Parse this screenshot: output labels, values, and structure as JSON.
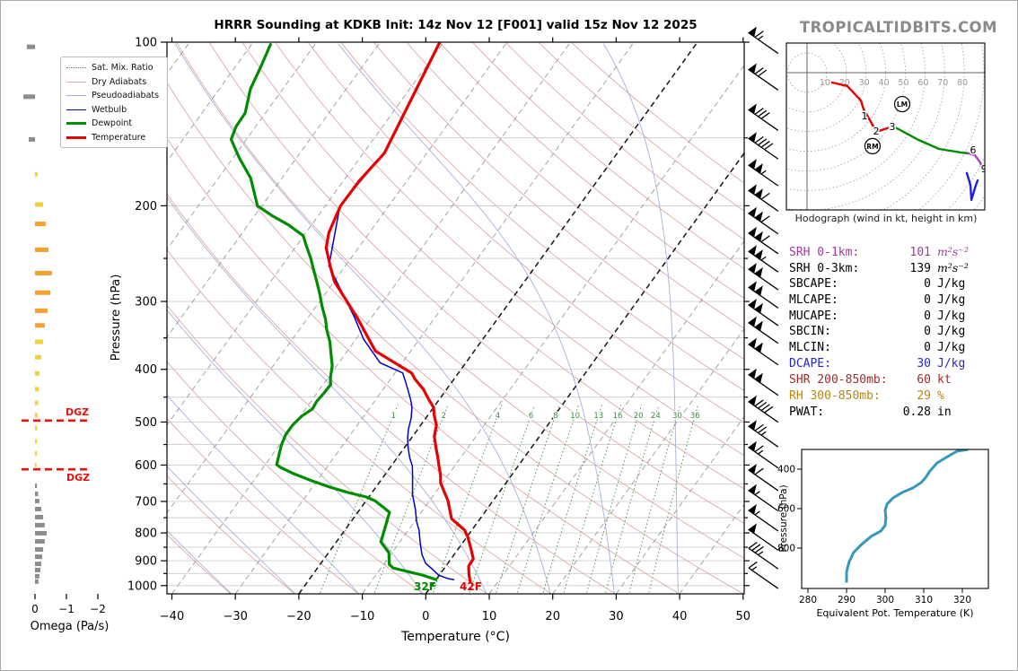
{
  "title": "HRRR Sounding at KDKB Init: 14z Nov 12 [F001] valid 15z Nov 12 2025",
  "watermark": "TROPICALTIDBITS.COM",
  "skewt_labels": {
    "xlabel": "Temperature (°C)",
    "ylabel": "Pressure (hPa)",
    "surface_temp": "42F",
    "surface_dewpoint": "32F"
  },
  "legend_items": [
    "Sat. Mix. Ratio",
    "Dry Adiabats",
    "Pseudoadiabats",
    "Wetbulb",
    "Dewpoint",
    "Temperature"
  ],
  "omega_panel": {
    "label": "Omega (Pa/s)",
    "dgz": "DGZ",
    "ticks": [
      0,
      -1,
      -2
    ]
  },
  "hodograph_panel": {
    "caption": "Hodograph (wind in kt, height in km)",
    "ring_labels": [
      10,
      20,
      30,
      40,
      50,
      60,
      70,
      80
    ]
  },
  "thetae_panel": {
    "xlabel": "Equivalent Pot. Temperature (K)",
    "ylabel": "Pressure (hPa)",
    "x_ticks": [
      280,
      290,
      300,
      310,
      320
    ],
    "y_ticks": [
      400,
      600,
      800
    ]
  },
  "stats": {
    "rows": [
      {
        "label": "SRH 0-1km:",
        "value": "101",
        "unit": "m²s⁻²",
        "color": "#a03aa0",
        "math": true
      },
      {
        "label": "SRH 0-3km:",
        "value": "139",
        "unit": "m²s⁻²",
        "color": "#000000",
        "math": true
      },
      {
        "label": "SBCAPE:",
        "value": "0",
        "unit": "J/kg",
        "color": "#000000",
        "math": false
      },
      {
        "label": "MLCAPE:",
        "value": "0",
        "unit": "J/kg",
        "color": "#000000",
        "math": false
      },
      {
        "label": "MUCAPE:",
        "value": "0",
        "unit": "J/kg",
        "color": "#000000",
        "math": false
      },
      {
        "label": "SBCIN:",
        "value": "0",
        "unit": "J/kg",
        "color": "#000000",
        "math": false
      },
      {
        "label": "MLCIN:",
        "value": "0",
        "unit": "J/kg",
        "color": "#000000",
        "math": false
      },
      {
        "label": "DCAPE:",
        "value": "30",
        "unit": "J/kg",
        "color": "#2525cc",
        "math": false
      },
      {
        "label": "SHR 200-850mb:",
        "value": "60",
        "unit": "kt",
        "color": "#a52a2a",
        "math": false
      },
      {
        "label": "RH 300-850mb:",
        "value": "29",
        "unit": "%",
        "color": "#b8860b",
        "math": false
      },
      {
        "label": "PWAT:",
        "value": "0.28",
        "unit": "in",
        "color": "#000000",
        "math": false
      }
    ]
  },
  "chart_data": {
    "type": "skewt-sounding",
    "skewt": {
      "x_axis": {
        "label": "Temperature (°C)",
        "range": [
          -40,
          50
        ],
        "ticks": [
          -40,
          -30,
          -20,
          -10,
          0,
          10,
          20,
          30,
          40,
          50
        ]
      },
      "p_axis": {
        "label": "Pressure (hPa)",
        "range": [
          100,
          1036
        ],
        "ticks": [
          100,
          200,
          300,
          400,
          500,
          600,
          700,
          800,
          900,
          1000
        ]
      },
      "isotherm_step": 10,
      "bold_isotherms": [
        0,
        -20
      ],
      "mixing_ratio_lines": [
        1,
        2,
        4,
        6,
        8,
        10,
        13,
        16,
        20,
        24,
        30,
        36
      ],
      "series": [
        {
          "name": "Temperature",
          "color": "#e60000",
          "width": 3.2,
          "points": [
            [
              100,
              -60.6
            ],
            [
              160,
              -56.7
            ],
            [
              180,
              -57.5
            ],
            [
              200,
              -57.6
            ],
            [
              224,
              -56.4
            ],
            [
              239,
              -55.1
            ],
            [
              258,
              -52.4
            ],
            [
              276,
              -49.9
            ],
            [
              321,
              -42.3
            ],
            [
              370,
              -35.6
            ],
            [
              406,
              -27.4
            ],
            [
              418,
              -26
            ],
            [
              435,
              -23.7
            ],
            [
              456,
              -21.5
            ],
            [
              470,
              -20
            ],
            [
              486,
              -19
            ],
            [
              507,
              -17.5
            ],
            [
              531,
              -16.6
            ],
            [
              558,
              -15
            ],
            [
              580,
              -13.7
            ],
            [
              602,
              -12.5
            ],
            [
              626,
              -11.2
            ],
            [
              647,
              -10.3
            ],
            [
              698,
              -7.1
            ],
            [
              753,
              -4.5
            ],
            [
              791,
              -1.1
            ],
            [
              815,
              0.2
            ],
            [
              863,
              2.3
            ],
            [
              893,
              3.5
            ],
            [
              921,
              3.6
            ],
            [
              957,
              4.7
            ],
            [
              983,
              5.6
            ]
          ]
        },
        {
          "name": "Dewpoint",
          "color": "#008c00",
          "width": 3.2,
          "points": [
            [
              101,
              -87
            ],
            [
              111,
              -86
            ],
            [
              122,
              -85.1
            ],
            [
              135,
              -83.2
            ],
            [
              143,
              -83.1
            ],
            [
              151,
              -82.4
            ],
            [
              163,
              -79.1
            ],
            [
              178,
              -74.9
            ],
            [
              200,
              -70.7
            ],
            [
              209,
              -67.1
            ],
            [
              217,
              -63.6
            ],
            [
              227,
              -60.1
            ],
            [
              236,
              -58.6
            ],
            [
              250,
              -56.3
            ],
            [
              260,
              -54.9
            ],
            [
              276,
              -52.7
            ],
            [
              291,
              -50.8
            ],
            [
              306,
              -49.1
            ],
            [
              324,
              -47
            ],
            [
              338,
              -45.7
            ],
            [
              356,
              -43.8
            ],
            [
              374,
              -42.3
            ],
            [
              394,
              -40.7
            ],
            [
              415,
              -39.6
            ],
            [
              427,
              -38.8
            ],
            [
              442,
              -38.9
            ],
            [
              458,
              -39.1
            ],
            [
              473,
              -38.9
            ],
            [
              488,
              -39.8
            ],
            [
              507,
              -40.2
            ],
            [
              527,
              -40.2
            ],
            [
              551,
              -39.7
            ],
            [
              573,
              -39
            ],
            [
              599,
              -38.2
            ],
            [
              606,
              -37.3
            ],
            [
              623,
              -34.4
            ],
            [
              642,
              -30.7
            ],
            [
              659,
              -27.2
            ],
            [
              674,
              -23.8
            ],
            [
              687,
              -20.4
            ],
            [
              698,
              -18.6
            ],
            [
              719,
              -16.4
            ],
            [
              733,
              -15
            ],
            [
              815,
              -13.3
            ],
            [
              831,
              -13
            ],
            [
              870,
              -10.5
            ],
            [
              914,
              -9.1
            ],
            [
              928,
              -8.1
            ],
            [
              957,
              -2.6
            ],
            [
              975,
              0
            ]
          ]
        },
        {
          "name": "Wetbulb",
          "color": "#0000c8",
          "width": 1.5,
          "points": [
            [
              100,
              -60.7
            ],
            [
              160,
              -56.8
            ],
            [
              200,
              -57.7
            ],
            [
              258,
              -52.6
            ],
            [
              321,
              -42.7
            ],
            [
              352,
              -38.8
            ],
            [
              389,
              -33.5
            ],
            [
              406,
              -28.8
            ],
            [
              421,
              -27.4
            ],
            [
              439,
              -25.8
            ],
            [
              456,
              -24.4
            ],
            [
              470,
              -23.4
            ],
            [
              492,
              -22.3
            ],
            [
              515,
              -21.5
            ],
            [
              535,
              -20.6
            ],
            [
              558,
              -19.4
            ],
            [
              584,
              -17.9
            ],
            [
              602,
              -16.7
            ],
            [
              626,
              -15.6
            ],
            [
              680,
              -13.4
            ],
            [
              725,
              -11.2
            ],
            [
              762,
              -9.7
            ],
            [
              791,
              -8.3
            ],
            [
              831,
              -6.8
            ],
            [
              876,
              -5.1
            ],
            [
              910,
              -3.5
            ],
            [
              931,
              -1.9
            ],
            [
              957,
              -0.1
            ],
            [
              971,
              1.8
            ],
            [
              975,
              2.8
            ]
          ]
        }
      ]
    },
    "wind_barbs": [
      {
        "p": 101,
        "spd": 65
      },
      {
        "p": 118,
        "spd": 70
      },
      {
        "p": 140,
        "spd": 80
      },
      {
        "p": 158,
        "spd": 90
      },
      {
        "p": 177,
        "spd": 105
      },
      {
        "p": 197,
        "spd": 110
      },
      {
        "p": 217,
        "spd": 110
      },
      {
        "p": 236,
        "spd": 110
      },
      {
        "p": 255,
        "spd": 105
      },
      {
        "p": 275,
        "spd": 100
      },
      {
        "p": 297,
        "spd": 100
      },
      {
        "p": 320,
        "spd": 100
      },
      {
        "p": 345,
        "spd": 100
      },
      {
        "p": 378,
        "spd": 100
      },
      {
        "p": 430,
        "spd": 100
      },
      {
        "p": 482,
        "spd": 90
      },
      {
        "p": 535,
        "spd": 75
      },
      {
        "p": 585,
        "spd": 65
      },
      {
        "p": 644,
        "spd": 60
      },
      {
        "p": 702,
        "spd": 55
      },
      {
        "p": 764,
        "spd": 55
      },
      {
        "p": 829,
        "spd": 50
      },
      {
        "p": 897,
        "spd": 35
      },
      {
        "p": 975,
        "spd": 15
      }
    ],
    "omega": {
      "units": "Pa/s",
      "dgz_pressures": [
        497,
        611
      ],
      "bars": [
        {
          "p": 102,
          "v": 0.26,
          "c": "g"
        },
        {
          "p": 126,
          "v": 0.37,
          "c": "g"
        },
        {
          "p": 151,
          "v": 0.2,
          "c": "g"
        },
        {
          "p": 175,
          "v": -0.08,
          "c": "y"
        },
        {
          "p": 199,
          "v": -0.26,
          "c": "y"
        },
        {
          "p": 216,
          "v": -0.34,
          "c": "o"
        },
        {
          "p": 241,
          "v": -0.43,
          "c": "o"
        },
        {
          "p": 266,
          "v": -0.54,
          "c": "o"
        },
        {
          "p": 289,
          "v": -0.49,
          "c": "o"
        },
        {
          "p": 312,
          "v": -0.4,
          "c": "o"
        },
        {
          "p": 332,
          "v": -0.31,
          "c": "o"
        },
        {
          "p": 356,
          "v": -0.26,
          "c": "y"
        },
        {
          "p": 380,
          "v": -0.2,
          "c": "y"
        },
        {
          "p": 407,
          "v": -0.14,
          "c": "y"
        },
        {
          "p": 435,
          "v": -0.12,
          "c": "y"
        },
        {
          "p": 461,
          "v": -0.1,
          "c": "y"
        },
        {
          "p": 486,
          "v": -0.08,
          "c": "y"
        },
        {
          "p": 513,
          "v": -0.07,
          "c": "y"
        },
        {
          "p": 542,
          "v": -0.06,
          "c": "y"
        },
        {
          "p": 571,
          "v": -0.06,
          "c": "y"
        },
        {
          "p": 600,
          "v": -0.05,
          "c": "y"
        },
        {
          "p": 655,
          "v": -0.06,
          "c": "g"
        },
        {
          "p": 678,
          "v": -0.1,
          "c": "g"
        },
        {
          "p": 699,
          "v": -0.14,
          "c": "g"
        },
        {
          "p": 723,
          "v": -0.2,
          "c": "g"
        },
        {
          "p": 748,
          "v": -0.26,
          "c": "g"
        },
        {
          "p": 774,
          "v": -0.31,
          "c": "g"
        },
        {
          "p": 801,
          "v": -0.37,
          "c": "g"
        },
        {
          "p": 829,
          "v": -0.31,
          "c": "g"
        },
        {
          "p": 858,
          "v": -0.26,
          "c": "g"
        },
        {
          "p": 885,
          "v": -0.23,
          "c": "g"
        },
        {
          "p": 912,
          "v": -0.2,
          "c": "g"
        },
        {
          "p": 936,
          "v": -0.17,
          "c": "g"
        },
        {
          "p": 961,
          "v": -0.14,
          "c": "g"
        },
        {
          "p": 983,
          "v": -0.11,
          "c": "g"
        }
      ]
    },
    "hodograph": {
      "units": "kt",
      "ring_step": 10,
      "segments": [
        {
          "layer": "0-3km",
          "color": "#e60000",
          "pts": [
            [
              12.8,
              5
            ],
            [
              20.5,
              6.8
            ],
            [
              27.4,
              14.2
            ],
            [
              28.8,
              18.7
            ],
            [
              31.5,
              23.3
            ],
            [
              34.2,
              28.3
            ],
            [
              36.5,
              29.7
            ],
            [
              42,
              27.9
            ],
            [
              43.8,
              27.4
            ]
          ]
        },
        {
          "layer": "3-6km",
          "color": "#008c00",
          "pts": [
            [
              43.8,
              27.4
            ],
            [
              45.7,
              28.3
            ],
            [
              56.6,
              34.2
            ],
            [
              67.1,
              38.8
            ],
            [
              78.1,
              40.6
            ],
            [
              82.2,
              41.1
            ]
          ]
        },
        {
          "layer": "6-9km",
          "color": "#b040c0",
          "pts": [
            [
              82.2,
              41.1
            ],
            [
              85.4,
              42
            ],
            [
              88.1,
              45.7
            ],
            [
              89,
              48.4
            ]
          ]
        },
        {
          "layer": "9km+",
          "color": "#2020e0",
          "pts": [
            [
              81.3,
              51.1
            ],
            [
              83.1,
              57.1
            ],
            [
              83.6,
              64.8
            ],
            [
              85.8,
              57.5
            ],
            [
              86.8,
              54.8
            ]
          ]
        }
      ],
      "height_labels": [
        {
          "t": "1",
          "u": 29.2,
          "v": 21.9
        },
        {
          "t": "2",
          "u": 35.2,
          "v": 29.7
        },
        {
          "t": "3",
          "u": 43.4,
          "v": 27.4
        },
        {
          "t": "6",
          "u": 84.5,
          "v": 39.3
        },
        {
          "t": "9",
          "u": 90,
          "v": 48.9
        }
      ],
      "markers": [
        {
          "t": "LM",
          "u": 48.4,
          "v": 16
        },
        {
          "t": "RM",
          "u": 33.3,
          "v": 37.4
        }
      ]
    },
    "theta_e": {
      "x_axis": {
        "label": "Equivalent Pot. Temperature (K)",
        "range": [
          278,
          327
        ]
      },
      "p_axis": {
        "label": "Pressure (hPa)",
        "range": [
          300,
          1005
        ]
      },
      "color": "#3598b8",
      "points": [
        [
          290,
          975
        ],
        [
          290,
          920
        ],
        [
          290.7,
          868
        ],
        [
          291.8,
          823
        ],
        [
          293.7,
          785
        ],
        [
          296.4,
          740
        ],
        [
          298.9,
          713
        ],
        [
          300,
          685
        ],
        [
          300.2,
          645
        ],
        [
          300,
          609
        ],
        [
          300.5,
          577
        ],
        [
          302.1,
          545
        ],
        [
          304.4,
          518
        ],
        [
          307.2,
          495
        ],
        [
          309.3,
          468
        ],
        [
          310.4,
          445
        ],
        [
          311.6,
          409
        ],
        [
          313.5,
          368
        ],
        [
          315.8,
          341
        ],
        [
          318.6,
          309
        ],
        [
          321.5,
          300
        ]
      ]
    }
  }
}
